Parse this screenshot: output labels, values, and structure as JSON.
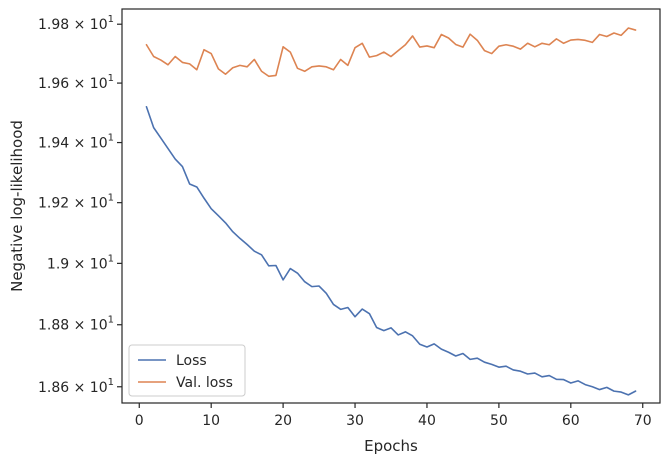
{
  "chart_data": {
    "type": "line",
    "title": "",
    "xlabel": "Epochs",
    "ylabel": "Negative log-likelihood",
    "xlim": [
      -2.4,
      72.4
    ],
    "ylim": [
      18.548,
      19.852
    ],
    "y_scale": "log",
    "grid": false,
    "legend_position": "lower-left",
    "x_ticks": [
      0,
      10,
      20,
      30,
      40,
      50,
      60,
      70
    ],
    "x_tick_labels": [
      "0",
      "10",
      "20",
      "30",
      "40",
      "50",
      "60",
      "70"
    ],
    "y_ticks": [
      18.6,
      18.8,
      19.0,
      19.2,
      19.4,
      19.6,
      19.8
    ],
    "y_tick_labels": [
      {
        "mantissa": "1.86",
        "exp": "1"
      },
      {
        "mantissa": "1.88",
        "exp": "1"
      },
      {
        "mantissa": "1.9",
        "exp": "1"
      },
      {
        "mantissa": "1.92",
        "exp": "1"
      },
      {
        "mantissa": "1.94",
        "exp": "1"
      },
      {
        "mantissa": "1.96",
        "exp": "1"
      },
      {
        "mantissa": "1.98",
        "exp": "1"
      }
    ],
    "y_tick_times": "×",
    "y_tick_base": "10",
    "x": [
      1,
      2,
      3,
      4,
      5,
      6,
      7,
      8,
      9,
      10,
      11,
      12,
      13,
      14,
      15,
      16,
      17,
      18,
      19,
      20,
      21,
      22,
      23,
      24,
      25,
      26,
      27,
      28,
      29,
      30,
      31,
      32,
      33,
      34,
      35,
      36,
      37,
      38,
      39,
      40,
      41,
      42,
      43,
      44,
      45,
      46,
      47,
      48,
      49,
      50,
      51,
      52,
      53,
      54,
      55,
      56,
      57,
      58,
      59,
      60,
      61,
      62,
      63,
      64,
      65,
      66,
      67,
      68,
      69
    ],
    "series": [
      {
        "name": "Loss",
        "color": "#4c72b0",
        "values": [
          19.52,
          19.45,
          19.415,
          19.38,
          19.345,
          19.32,
          19.262,
          19.252,
          19.215,
          19.18,
          19.157,
          19.133,
          19.104,
          19.082,
          19.062,
          19.04,
          19.028,
          18.992,
          18.993,
          18.946,
          18.983,
          18.968,
          18.94,
          18.924,
          18.926,
          18.902,
          18.866,
          18.85,
          18.856,
          18.826,
          18.851,
          18.836,
          18.791,
          18.781,
          18.79,
          18.767,
          18.777,
          18.764,
          18.737,
          18.728,
          18.738,
          18.721,
          18.711,
          18.699,
          18.707,
          18.688,
          18.692,
          18.679,
          18.672,
          18.663,
          18.666,
          18.654,
          18.65,
          18.641,
          18.644,
          18.632,
          18.636,
          18.624,
          18.623,
          18.612,
          18.619,
          18.607,
          18.6,
          18.591,
          18.598,
          18.586,
          18.583,
          18.574,
          18.586
        ]
      },
      {
        "name": "Val. loss",
        "color": "#dd8452",
        "values": [
          19.73,
          19.69,
          19.678,
          19.662,
          19.69,
          19.67,
          19.665,
          19.645,
          19.713,
          19.7,
          19.648,
          19.63,
          19.652,
          19.66,
          19.655,
          19.68,
          19.64,
          19.623,
          19.626,
          19.723,
          19.705,
          19.65,
          19.64,
          19.655,
          19.658,
          19.655,
          19.645,
          19.68,
          19.66,
          19.72,
          19.735,
          19.688,
          19.693,
          19.705,
          19.69,
          19.71,
          19.73,
          19.76,
          19.722,
          19.726,
          19.72,
          19.765,
          19.753,
          19.731,
          19.722,
          19.766,
          19.745,
          19.71,
          19.7,
          19.725,
          19.73,
          19.725,
          19.715,
          19.735,
          19.723,
          19.735,
          19.73,
          19.75,
          19.735,
          19.746,
          19.748,
          19.745,
          19.738,
          19.765,
          19.758,
          19.77,
          19.762,
          19.787,
          19.78
        ]
      }
    ]
  }
}
